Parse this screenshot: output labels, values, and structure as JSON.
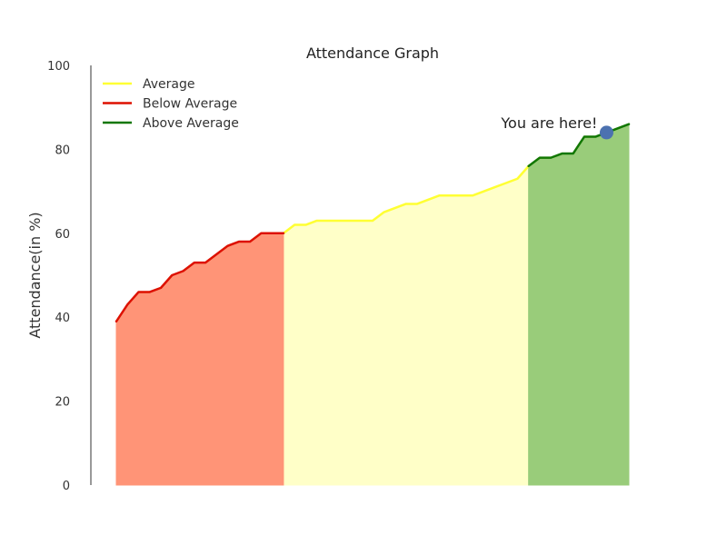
{
  "chart_data": {
    "type": "area",
    "title": "Attendance Graph",
    "xlabel": "",
    "ylabel": "Attendance(in %)",
    "ylim": [
      0,
      100
    ],
    "yticks": [
      0,
      20,
      40,
      60,
      80,
      100
    ],
    "grid": false,
    "legend_position": "top-left",
    "x": [
      1,
      2,
      3,
      4,
      5,
      6,
      7,
      8,
      9,
      10,
      11,
      12,
      13,
      14,
      15,
      16,
      17,
      18,
      19,
      20,
      21,
      22,
      23,
      24,
      25,
      26,
      27,
      28,
      29,
      30,
      31,
      32,
      33,
      34,
      35,
      36,
      37,
      38,
      39,
      40,
      41,
      42,
      43,
      44,
      45,
      46,
      47
    ],
    "values": [
      39,
      43,
      46,
      46,
      47,
      50,
      51,
      53,
      53,
      55,
      57,
      58,
      58,
      60,
      60,
      60,
      62,
      62,
      63,
      63,
      63,
      63,
      63,
      63,
      65,
      66,
      67,
      67,
      68,
      69,
      69,
      69,
      69,
      70,
      71,
      72,
      73,
      76,
      78,
      78,
      79,
      79,
      83,
      83,
      84,
      85,
      86
    ],
    "series": [
      {
        "name": "Average",
        "color": "#ffff33",
        "fill": "#ffffc8",
        "range": [
          16,
          38
        ]
      },
      {
        "name": "Below Average",
        "color": "#dd1100",
        "fill": "#ff9477",
        "range": [
          1,
          16
        ]
      },
      {
        "name": "Above Average",
        "color": "#117700",
        "fill": "#99cc7a",
        "range": [
          38,
          47
        ]
      }
    ],
    "annotation": {
      "text": "You are here!",
      "x": 45,
      "y": 84,
      "marker_color": "#4c72b0"
    }
  }
}
